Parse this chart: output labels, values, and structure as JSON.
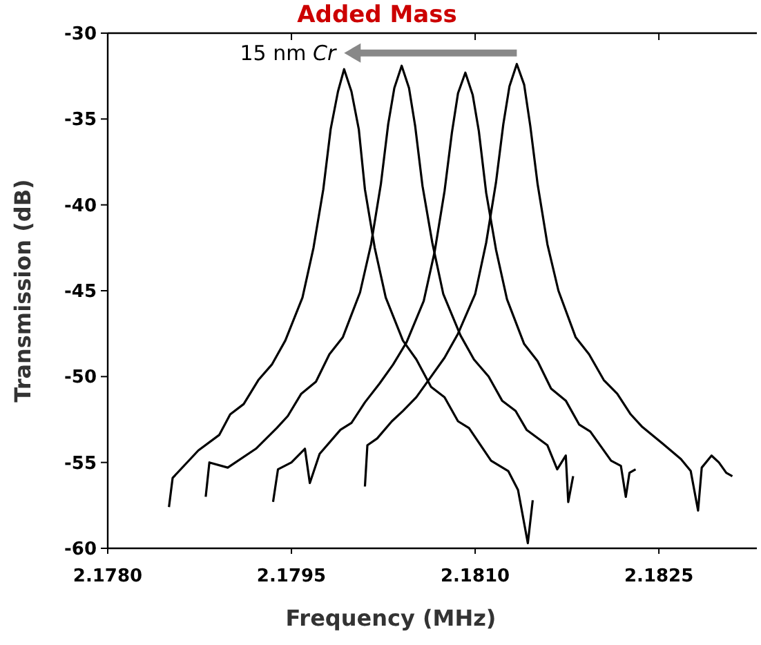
{
  "chart_data": {
    "type": "line",
    "title": "Added Mass",
    "xlabel": "Frequency (MHz)",
    "ylabel": "Transmission (dB)",
    "annotations": [
      "15 nm Cr"
    ],
    "xlim": [
      2.178,
      2.1833
    ],
    "ylim": [
      -60,
      -30
    ],
    "xticks": [
      {
        "value": 2.178,
        "label": "2.1780"
      },
      {
        "value": 2.1795,
        "label": "2.1795"
      },
      {
        "value": 2.181,
        "label": "2.1810"
      },
      {
        "value": 2.1825,
        "label": "2.1825"
      }
    ],
    "yticks": [
      -60,
      -55,
      -50,
      -45,
      -40,
      -35,
      -30
    ],
    "series": [
      {
        "color": "#000000",
        "x": [
          2.1785,
          2.17853,
          2.17874,
          2.17891,
          2.179,
          2.17911,
          2.17923,
          2.17934,
          2.17945,
          2.17959,
          2.17968,
          2.17976,
          2.17982,
          2.17988,
          2.17993,
          2.17999,
          2.18005,
          2.1801,
          2.18018,
          2.18027,
          2.18041,
          2.18052,
          2.18064,
          2.18075,
          2.18086,
          2.18095,
          2.18113,
          2.18127,
          2.18135,
          2.18143,
          2.18147
        ],
        "values": [
          -57.6,
          -55.9,
          -54.3,
          -53.4,
          -52.2,
          -51.6,
          -50.2,
          -49.3,
          -47.9,
          -45.4,
          -42.5,
          -39.1,
          -35.6,
          -33.4,
          -32.1,
          -33.4,
          -35.6,
          -39.1,
          -42.5,
          -45.4,
          -47.9,
          -49,
          -50.6,
          -51.2,
          -52.6,
          -53,
          -54.9,
          -55.5,
          -56.6,
          -59.7,
          -57.2
        ]
      },
      {
        "color": "#000000",
        "x": [
          2.1788,
          2.17883,
          2.17898,
          2.17921,
          2.17938,
          2.17947,
          2.17958,
          2.1797,
          2.17981,
          2.17992,
          2.18006,
          2.18015,
          2.18023,
          2.18029,
          2.18034,
          2.1804,
          2.18046,
          2.18051,
          2.18057,
          2.18065,
          2.18074,
          2.18088,
          2.18099,
          2.18111,
          2.18122,
          2.18133,
          2.18142,
          2.18159,
          2.18167,
          2.18174,
          2.18176,
          2.1818
        ],
        "values": [
          -57,
          -55,
          -55.3,
          -54.2,
          -53,
          -52.3,
          -51,
          -50.3,
          -48.7,
          -47.7,
          -45.1,
          -42.3,
          -38.8,
          -35.3,
          -33.2,
          -31.9,
          -33.2,
          -35.4,
          -38.9,
          -42.2,
          -45.2,
          -47.6,
          -49,
          -50,
          -51.4,
          -52,
          -53.1,
          -54,
          -55.4,
          -54.6,
          -57.3,
          -55.8
        ]
      },
      {
        "color": "#000000",
        "x": [
          2.17935,
          2.17939,
          2.1795,
          2.17961,
          2.17965,
          2.17973,
          2.1799,
          2.17999,
          2.1801,
          2.18022,
          2.18033,
          2.18044,
          2.18058,
          2.18067,
          2.18075,
          2.18081,
          2.18086,
          2.18092,
          2.18098,
          2.18103,
          2.18109,
          2.18117,
          2.18126,
          2.1814,
          2.18151,
          2.18162,
          2.18174,
          2.18185,
          2.18194,
          2.18211,
          2.18219,
          2.18223,
          2.18226,
          2.18231
        ],
        "values": [
          -57.3,
          -55.4,
          -55,
          -54.2,
          -56.2,
          -54.5,
          -53.1,
          -52.7,
          -51.5,
          -50.4,
          -49.3,
          -48,
          -45.6,
          -42.7,
          -39.2,
          -35.8,
          -33.5,
          -32.3,
          -33.6,
          -35.7,
          -39.3,
          -42.6,
          -45.5,
          -48.1,
          -49.1,
          -50.7,
          -51.4,
          -52.8,
          -53.2,
          -54.9,
          -55.2,
          -57,
          -55.6,
          -55.4
        ]
      },
      {
        "color": "#000000",
        "x": [
          2.1801,
          2.18012,
          2.1802,
          2.18032,
          2.18041,
          2.18052,
          2.18064,
          2.18075,
          2.18086,
          2.181,
          2.18109,
          2.18117,
          2.18123,
          2.18128,
          2.18134,
          2.1814,
          2.18145,
          2.18151,
          2.18159,
          2.18168,
          2.18182,
          2.18193,
          2.18205,
          2.18216,
          2.18227,
          2.18236,
          2.18253,
          2.18268,
          2.18276,
          2.18282,
          2.18285,
          2.18293,
          2.18299,
          2.18305,
          2.1831
        ],
        "values": [
          -56.4,
          -54,
          -53.6,
          -52.6,
          -52,
          -51.2,
          -50,
          -48.9,
          -47.5,
          -45.2,
          -42.2,
          -38.7,
          -35.3,
          -33.1,
          -31.8,
          -33,
          -35.4,
          -38.8,
          -42.3,
          -45,
          -47.7,
          -48.7,
          -50.2,
          -51,
          -52.2,
          -52.9,
          -53.9,
          -54.8,
          -55.5,
          -57.8,
          -55.3,
          -54.6,
          -55,
          -55.6,
          -55.8
        ]
      }
    ]
  }
}
